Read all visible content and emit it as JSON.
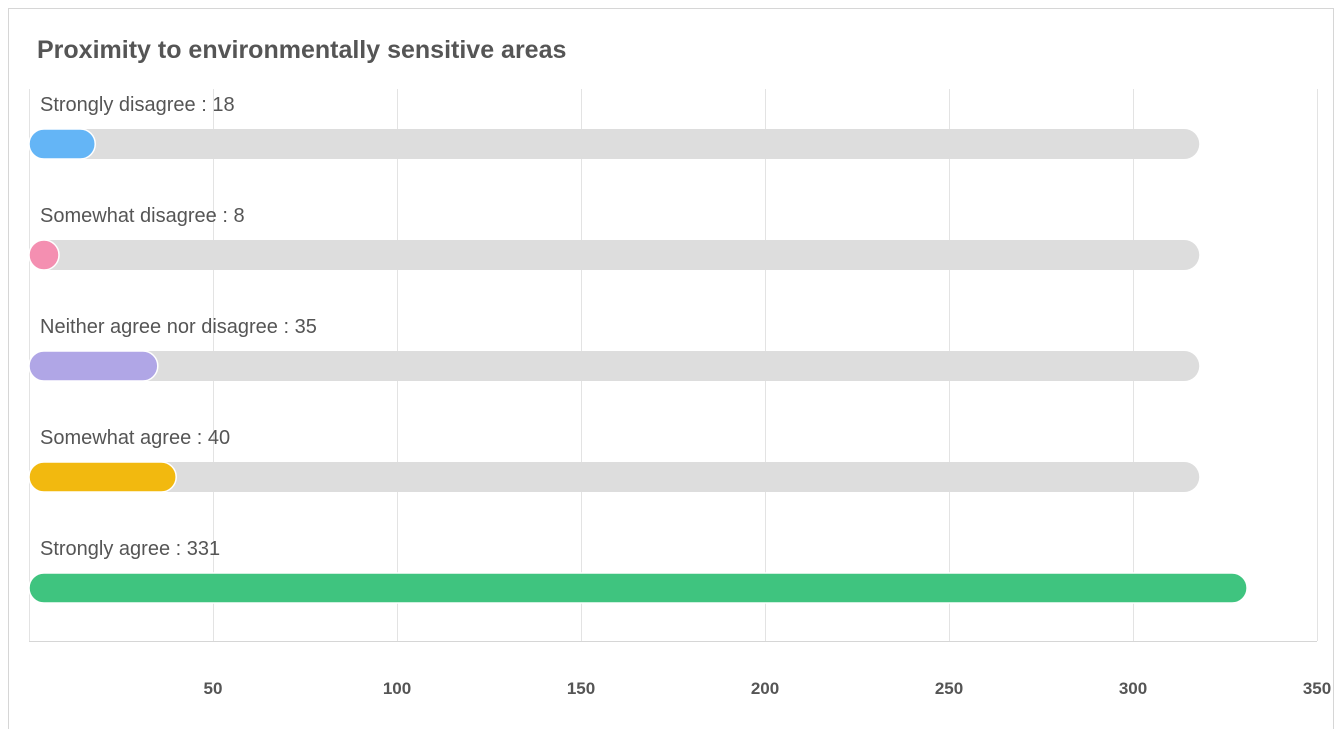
{
  "chart_data": {
    "type": "bar",
    "orientation": "horizontal",
    "title": "Proximity to environmentally sensitive areas",
    "categories": [
      "Strongly disagree",
      "Somewhat disagree",
      "Neither agree nor disagree",
      "Somewhat agree",
      "Strongly agree"
    ],
    "values": [
      18,
      8,
      35,
      40,
      331
    ],
    "label_separator": " : ",
    "colors": [
      "#64b5f6",
      "#f48fb1",
      "#b0a6e6",
      "#f2b90f",
      "#3fc47f"
    ],
    "track_color": "#dddddd",
    "track_max": 318,
    "xlim": [
      0,
      350
    ],
    "xticks": [
      50,
      100,
      150,
      200,
      250,
      300,
      350
    ],
    "xlabel": "",
    "ylabel": "",
    "grid": true,
    "legend": "none"
  }
}
